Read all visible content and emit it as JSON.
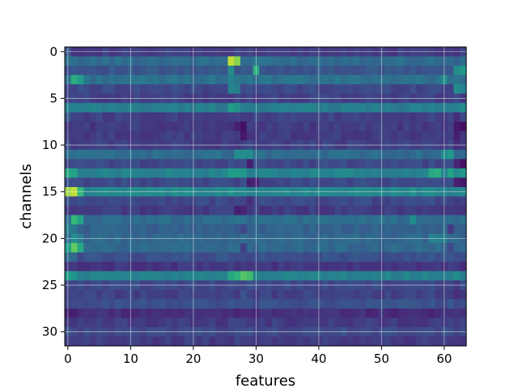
{
  "chart_data": {
    "type": "heatmap",
    "title": "",
    "xlabel": "features",
    "ylabel": "channels",
    "n_cols": 64,
    "n_rows": 32,
    "xlim": [
      -0.5,
      63.5
    ],
    "ylim": [
      31.5,
      -0.5
    ],
    "xticks": [
      0,
      10,
      20,
      30,
      40,
      50,
      60
    ],
    "yticks": [
      0,
      5,
      10,
      15,
      20,
      25,
      30
    ],
    "grid": true,
    "colormap": "viridis",
    "value_range": [
      0,
      1
    ],
    "note_values_approximate": true,
    "rows": [
      {
        "channel": 0,
        "base": 0.2,
        "spots": [
          [
            0,
            0.3
          ]
        ]
      },
      {
        "channel": 1,
        "base": 0.4,
        "spots": [
          [
            26,
            0.95
          ],
          [
            27,
            0.9
          ],
          [
            30,
            0.45
          ],
          [
            62,
            0.35
          ]
        ]
      },
      {
        "channel": 2,
        "base": 0.3,
        "spots": [
          [
            26,
            0.55
          ],
          [
            30,
            0.7
          ],
          [
            62,
            0.55
          ],
          [
            63,
            0.6
          ]
        ]
      },
      {
        "channel": 3,
        "base": 0.42,
        "spots": [
          [
            1,
            0.7
          ],
          [
            2,
            0.62
          ],
          [
            26,
            0.5
          ],
          [
            60,
            0.55
          ]
        ]
      },
      {
        "channel": 4,
        "base": 0.25,
        "spots": [
          [
            26,
            0.5
          ],
          [
            27,
            0.48
          ],
          [
            62,
            0.55
          ],
          [
            63,
            0.5
          ]
        ]
      },
      {
        "channel": 5,
        "base": 0.22,
        "spots": []
      },
      {
        "channel": 6,
        "base": 0.48,
        "spots": [
          [
            26,
            0.62
          ],
          [
            27,
            0.58
          ],
          [
            63,
            0.55
          ]
        ]
      },
      {
        "channel": 7,
        "base": 0.22,
        "spots": [
          [
            0,
            0.3
          ],
          [
            62,
            0.15
          ]
        ]
      },
      {
        "channel": 8,
        "base": 0.2,
        "spots": [
          [
            27,
            0.1
          ],
          [
            28,
            0.05
          ],
          [
            62,
            0.08
          ],
          [
            63,
            0.05
          ]
        ]
      },
      {
        "channel": 9,
        "base": 0.2,
        "spots": [
          [
            28,
            0.08
          ],
          [
            62,
            0.1
          ]
        ]
      },
      {
        "channel": 10,
        "base": 0.22,
        "spots": [
          [
            62,
            0.15
          ]
        ]
      },
      {
        "channel": 11,
        "base": 0.4,
        "spots": [
          [
            27,
            0.55
          ],
          [
            28,
            0.55
          ],
          [
            29,
            0.55
          ],
          [
            60,
            0.55
          ],
          [
            61,
            0.6
          ]
        ]
      },
      {
        "channel": 12,
        "base": 0.25,
        "spots": [
          [
            29,
            0.1
          ],
          [
            62,
            0.12
          ],
          [
            63,
            0.05
          ]
        ]
      },
      {
        "channel": 13,
        "base": 0.5,
        "spots": [
          [
            0,
            0.68
          ],
          [
            1,
            0.65
          ],
          [
            26,
            0.62
          ],
          [
            27,
            0.62
          ],
          [
            28,
            0.6
          ],
          [
            58,
            0.68
          ],
          [
            59,
            0.7
          ],
          [
            61,
            0.65
          ],
          [
            63,
            0.6
          ]
        ]
      },
      {
        "channel": 14,
        "base": 0.25,
        "spots": [
          [
            29,
            0.1
          ],
          [
            30,
            0.12
          ],
          [
            62,
            0.1
          ],
          [
            63,
            0.08
          ]
        ]
      },
      {
        "channel": 15,
        "base": 0.52,
        "spots": [
          [
            0,
            0.92
          ],
          [
            1,
            0.95
          ],
          [
            2,
            0.75
          ],
          [
            26,
            0.58
          ],
          [
            55,
            0.58
          ]
        ]
      },
      {
        "channel": 16,
        "base": 0.25,
        "spots": [
          [
            29,
            0.15
          ],
          [
            62,
            0.2
          ]
        ]
      },
      {
        "channel": 17,
        "base": 0.2,
        "spots": [
          [
            27,
            0.1
          ],
          [
            28,
            0.12
          ]
        ]
      },
      {
        "channel": 18,
        "base": 0.4,
        "spots": [
          [
            1,
            0.75
          ],
          [
            2,
            0.65
          ],
          [
            55,
            0.55
          ]
        ]
      },
      {
        "channel": 19,
        "base": 0.35,
        "spots": [
          [
            0,
            0.48
          ],
          [
            1,
            0.45
          ],
          [
            28,
            0.25
          ],
          [
            61,
            0.2
          ]
        ]
      },
      {
        "channel": 20,
        "base": 0.38,
        "spots": [
          [
            1,
            0.55
          ],
          [
            2,
            0.48
          ],
          [
            58,
            0.5
          ],
          [
            59,
            0.48
          ],
          [
            60,
            0.48
          ]
        ]
      },
      {
        "channel": 21,
        "base": 0.38,
        "spots": [
          [
            0,
            0.62
          ],
          [
            1,
            0.85
          ],
          [
            2,
            0.68
          ],
          [
            28,
            0.22
          ],
          [
            61,
            0.25
          ]
        ]
      },
      {
        "channel": 22,
        "base": 0.28,
        "spots": [
          [
            0,
            0.4
          ],
          [
            1,
            0.38
          ]
        ]
      },
      {
        "channel": 23,
        "base": 0.18,
        "spots": []
      },
      {
        "channel": 24,
        "base": 0.5,
        "spots": [
          [
            0,
            0.62
          ],
          [
            1,
            0.58
          ],
          [
            26,
            0.68
          ],
          [
            27,
            0.72
          ],
          [
            28,
            0.82
          ],
          [
            29,
            0.78
          ],
          [
            62,
            0.55
          ]
        ]
      },
      {
        "channel": 25,
        "base": 0.25,
        "spots": [
          [
            62,
            0.18
          ]
        ]
      },
      {
        "channel": 26,
        "base": 0.22,
        "spots": [
          [
            28,
            0.3
          ],
          [
            62,
            0.15
          ]
        ]
      },
      {
        "channel": 27,
        "base": 0.28,
        "spots": []
      },
      {
        "channel": 28,
        "base": 0.15,
        "spots": [
          [
            0,
            0.1
          ],
          [
            1,
            0.1
          ]
        ]
      },
      {
        "channel": 29,
        "base": 0.2,
        "spots": []
      },
      {
        "channel": 30,
        "base": 0.25,
        "spots": []
      },
      {
        "channel": 31,
        "base": 0.2,
        "spots": []
      }
    ]
  }
}
